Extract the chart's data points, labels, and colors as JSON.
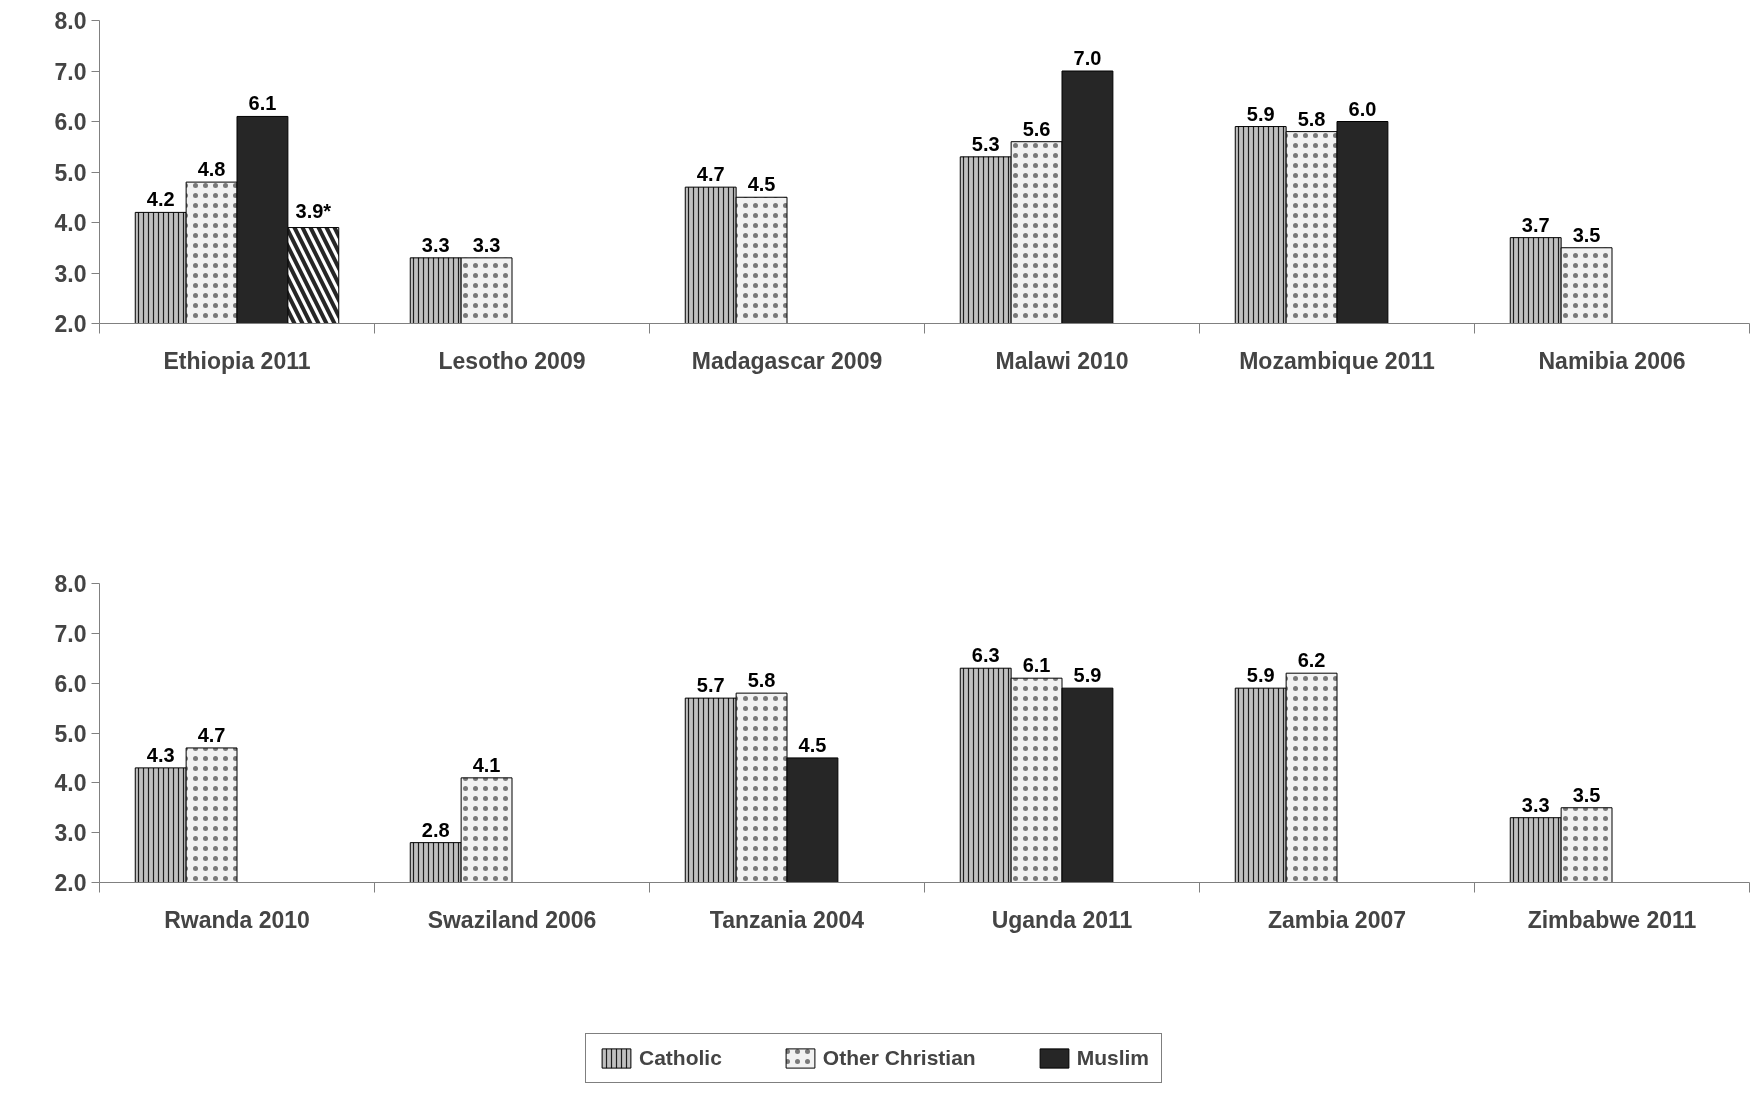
{
  "chart_data": [
    {
      "type": "bar",
      "categories": [
        "Ethiopia 2011",
        "Lesotho 2009",
        "Madagascar 2009",
        "Malawi 2010",
        "Mozambique 2011",
        "Namibia 2006"
      ],
      "ylim": [
        2,
        8
      ],
      "yticks": [
        {
          "value": 2,
          "label": "2.0"
        },
        {
          "value": 3,
          "label": "3.0"
        },
        {
          "value": 4,
          "label": "4.0"
        },
        {
          "value": 5,
          "label": "5.0"
        },
        {
          "value": 6,
          "label": "6.0"
        },
        {
          "value": 7,
          "label": "7.0"
        },
        {
          "value": 8,
          "label": "8.0"
        }
      ],
      "grid": false,
      "series": [
        {
          "color": "#bfbfbf",
          "values": [
            4.2,
            3.3,
            4.7,
            5.3,
            5.9,
            3.7
          ],
          "value_labels": [
            "4.2",
            "3.3",
            "4.7",
            "5.3",
            "5.9",
            "3.7"
          ]
        },
        {
          "color": "#f2f2f2",
          "values": [
            4.8,
            3.3,
            4.5,
            5.6,
            5.8,
            3.5
          ],
          "value_labels": [
            "4.8",
            "3.3",
            "4.5",
            "5.6",
            "5.8",
            "3.5"
          ]
        },
        {
          "color": "#262626",
          "values": [
            6.1,
            null,
            null,
            7.0,
            6.0,
            null
          ],
          "value_labels": [
            "6.1",
            null,
            null,
            "7.0",
            "6.0",
            null
          ]
        },
        {
          "color": "#ffffff",
          "values": [
            3.9,
            null,
            null,
            null,
            null,
            null
          ],
          "value_labels": [
            "3.9*",
            null,
            null,
            null,
            null,
            null
          ]
        }
      ]
    },
    {
      "type": "bar",
      "categories": [
        "Rwanda 2010",
        "Swaziland 2006",
        "Tanzania 2004",
        "Uganda 2011",
        "Zambia 2007",
        "Zimbabwe 2011"
      ],
      "ylim": [
        2,
        8
      ],
      "yticks": [
        {
          "value": 2,
          "label": "2.0"
        },
        {
          "value": 3,
          "label": "3.0"
        },
        {
          "value": 4,
          "label": "4.0"
        },
        {
          "value": 5,
          "label": "5.0"
        },
        {
          "value": 6,
          "label": "6.0"
        },
        {
          "value": 7,
          "label": "7.0"
        },
        {
          "value": 8,
          "label": "8.0"
        }
      ],
      "grid": false,
      "legend": "bottom",
      "series": [
        {
          "name": "Catholic",
          "color": "#bfbfbf",
          "values": [
            4.3,
            2.8,
            5.7,
            6.3,
            5.9,
            3.3
          ],
          "value_labels": [
            "4.3",
            "2.8",
            "5.7",
            "6.3",
            "5.9",
            "3.3"
          ]
        },
        {
          "name": "Other Christian",
          "color": "#f2f2f2",
          "values": [
            4.7,
            4.1,
            5.8,
            6.1,
            6.2,
            3.5
          ],
          "value_labels": [
            "4.7",
            "4.1",
            "5.8",
            "6.1",
            "6.2",
            "3.5"
          ]
        },
        {
          "name": "Muslim",
          "color": "#262626",
          "values": [
            null,
            null,
            4.5,
            5.9,
            null,
            null
          ],
          "value_labels": [
            null,
            null,
            "4.5",
            "5.9",
            null,
            null
          ]
        }
      ]
    }
  ]
}
